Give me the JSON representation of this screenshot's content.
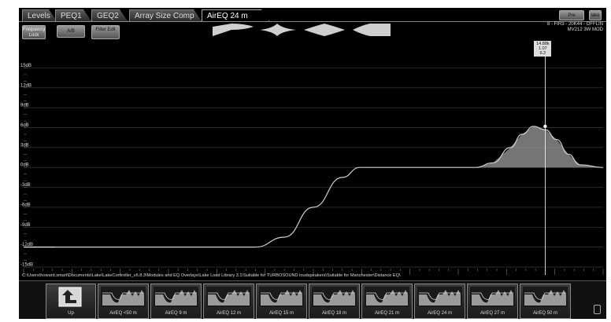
{
  "tabs": [
    {
      "label": "Levels",
      "active": false
    },
    {
      "label": "PEQ1",
      "active": false
    },
    {
      "label": "GEQ2",
      "active": false
    },
    {
      "label": "Array Size Comp",
      "active": false
    },
    {
      "label": "AirEQ 24 m",
      "active": true
    }
  ],
  "toolbar": {
    "frequency_lock": "Frequency Lock",
    "ab": "A/B",
    "filter_edit": "Filter Edit",
    "pre": "Pre",
    "lake": "lake"
  },
  "device_info": {
    "line1": "8 - FIR3 - 20K44 - OFFLIN",
    "line2": "MV212 3W MOD"
  },
  "marker_readout": {
    "line1": "14.88k",
    "line2": "1.07",
    "line3": "6.2"
  },
  "chart_data": {
    "type": "line",
    "title": "",
    "xlabel": "",
    "ylabel": "",
    "ylim": [
      -15,
      16
    ],
    "y_ticks": [
      "15dB",
      "12dB",
      "9dB",
      "6dB",
      "3dB",
      "0dB",
      "-3dB",
      "-6dB",
      "-9dB",
      "-12dB",
      "-15dB"
    ],
    "y_tick_values": [
      15,
      12,
      9,
      6,
      3,
      0,
      -3,
      -6,
      -9,
      -12,
      -15
    ],
    "grid": true,
    "series": [
      {
        "x_norm": [
          0.0,
          0.4,
          0.45,
          0.5,
          0.55,
          0.58,
          0.7,
          0.7,
          0.78,
          0.81,
          0.84,
          0.86,
          0.88,
          0.9,
          0.92,
          0.94,
          0.96,
          1.0
        ],
        "y": [
          -12,
          -12,
          -10.5,
          -6,
          -1.5,
          0,
          0,
          0,
          0,
          0.7,
          3,
          5,
          6.2,
          5.7,
          4.2,
          2,
          0.4,
          0
        ]
      }
    ],
    "marker": {
      "x_norm": 0.9,
      "y": 6.2
    }
  },
  "file_path": "C:\\Users\\howard.smart\\Documents\\Lake\\LakeController_v6.8.3\\Modules and EQ Overlays\\Lake Load Library 3.1\\Suitable for TURBOSOUND loudspeakers\\Suitable for Manchester\\Distance EQ\\",
  "presets": {
    "up_label": "Up",
    "items": [
      "AirEQ <50 m",
      "AirEQ 9 m",
      "AirEQ 12 m",
      "AirEQ 15 m",
      "AirEQ 18 m",
      "AirEQ 21 m",
      "AirEQ 24 m",
      "AirEQ 27 m",
      "AirEQ 50 m"
    ]
  },
  "colors": {
    "background": "#000000",
    "curve": "#cfcfcf",
    "fill": "#8a8a8a",
    "grid": "#3a3a3a"
  }
}
